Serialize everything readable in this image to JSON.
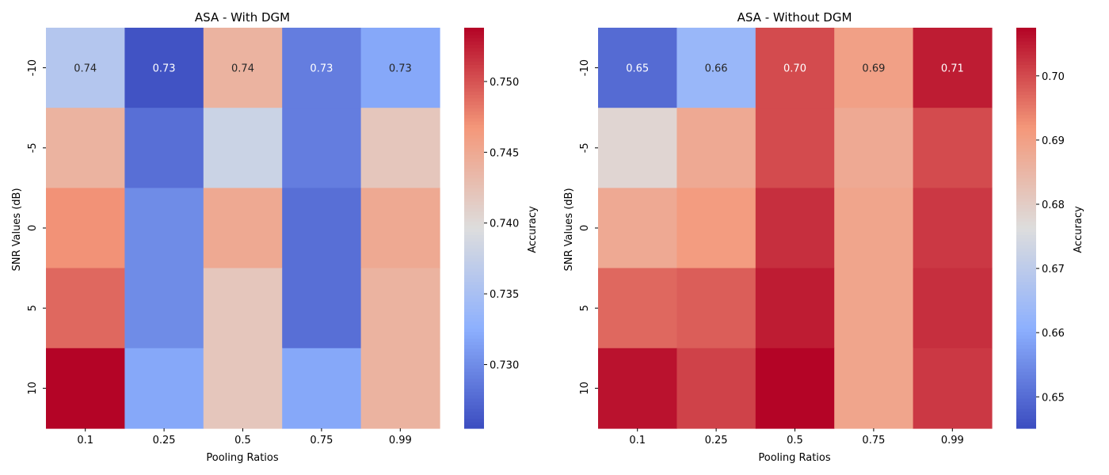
{
  "chart_data": [
    {
      "type": "heatmap",
      "title": "ASA - With DGM",
      "xlabel": "Pooling Ratios",
      "ylabel": "SNR Values (dB)",
      "x_categories": [
        "0.1",
        "0.25",
        "0.5",
        "0.75",
        "0.99"
      ],
      "y_categories": [
        "-10",
        "-5",
        "0",
        "5",
        "10"
      ],
      "values": [
        [
          0.736,
          0.726,
          0.744,
          0.729,
          0.732
        ],
        [
          0.744,
          0.728,
          0.738,
          0.729,
          0.742
        ],
        [
          0.747,
          0.73,
          0.745,
          0.728,
          0.745
        ],
        [
          0.749,
          0.73,
          0.742,
          0.728,
          0.744
        ],
        [
          0.754,
          0.732,
          0.742,
          0.732,
          0.744
        ]
      ],
      "annotations": [
        [
          "0.74",
          "0.73",
          "0.74",
          "0.73",
          "0.73"
        ],
        null,
        null,
        null,
        null
      ],
      "colormap": "coolwarm",
      "vmin": 0.7255,
      "vmax": 0.7538,
      "colorbar": {
        "label": "Accuracy",
        "ticks": [
          0.73,
          0.735,
          0.74,
          0.745,
          0.75
        ],
        "tick_labels": [
          "0.730",
          "0.735",
          "0.740",
          "0.745",
          "0.750"
        ]
      }
    },
    {
      "type": "heatmap",
      "title": "ASA - Without DGM",
      "xlabel": "Pooling Ratios",
      "ylabel": "SNR Values (dB)",
      "x_categories": [
        "0.1",
        "0.25",
        "0.5",
        "0.75",
        "0.99"
      ],
      "y_categories": [
        "-10",
        "-5",
        "0",
        "5",
        "10"
      ],
      "values": [
        [
          0.65,
          0.663,
          0.7,
          0.69,
          0.705
        ],
        [
          0.678,
          0.688,
          0.7,
          0.688,
          0.7
        ],
        [
          0.688,
          0.691,
          0.703,
          0.689,
          0.702
        ],
        [
          0.697,
          0.698,
          0.705,
          0.689,
          0.703
        ],
        [
          0.706,
          0.701,
          0.708,
          0.689,
          0.702
        ]
      ],
      "annotations": [
        [
          "0.65",
          "0.66",
          "0.70",
          "0.69",
          "0.71"
        ],
        null,
        null,
        null,
        null
      ],
      "colormap": "coolwarm",
      "vmin": 0.6451,
      "vmax": 0.7075,
      "colorbar": {
        "label": "Accuracy",
        "ticks": [
          0.65,
          0.66,
          0.67,
          0.68,
          0.69,
          0.7
        ],
        "tick_labels": [
          "0.65",
          "0.66",
          "0.67",
          "0.68",
          "0.69",
          "0.70"
        ]
      }
    }
  ]
}
